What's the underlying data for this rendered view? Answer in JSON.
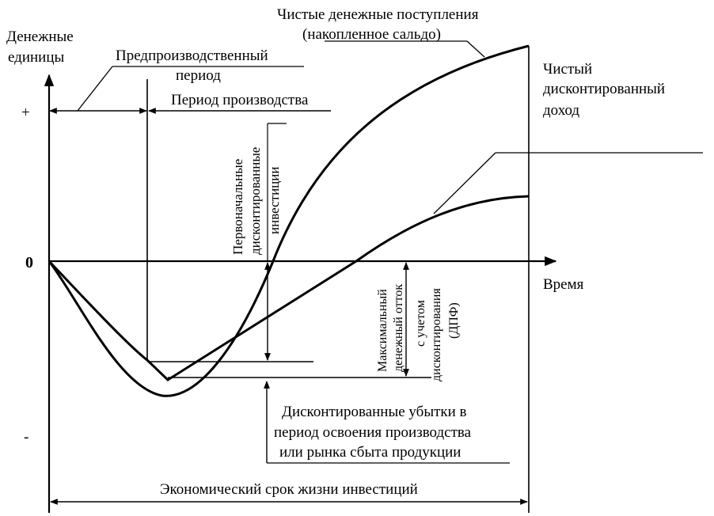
{
  "axis": {
    "y_label_line1": "Денежные",
    "y_label_line2": "единицы",
    "plus": "+",
    "minus": "-",
    "zero": "0",
    "x_label": "Время"
  },
  "labels": {
    "net_cash_line1": "Чистые денежные поступления",
    "net_cash_line2": "(накопленное сальдо)",
    "npv_line1": "Чистый",
    "npv_line2": "дисконтированный",
    "npv_line3": "доход",
    "preprod_line1": "Предпроизводственный",
    "preprod_line2": "период",
    "prod_period": "Период производства",
    "initial_inv_line1": "Первоначальные",
    "initial_inv_line2": "дисконтированные",
    "initial_inv_line3": "инвестиции",
    "max_outflow_line1": "Максимальный",
    "max_outflow_line2": "денежный отток",
    "dpf_line1": "с учетом",
    "dpf_line2": "дисконтирования",
    "dpf_line3": "(ДПФ)",
    "losses_line1": "Дисконтированные убытки в",
    "losses_line2": "период освоения производства",
    "losses_line3": "или рынка сбыта продукции",
    "life": "Экономический срок жизни инвестиций"
  },
  "colors": {
    "ink": "#000000",
    "background": "#ffffff"
  }
}
